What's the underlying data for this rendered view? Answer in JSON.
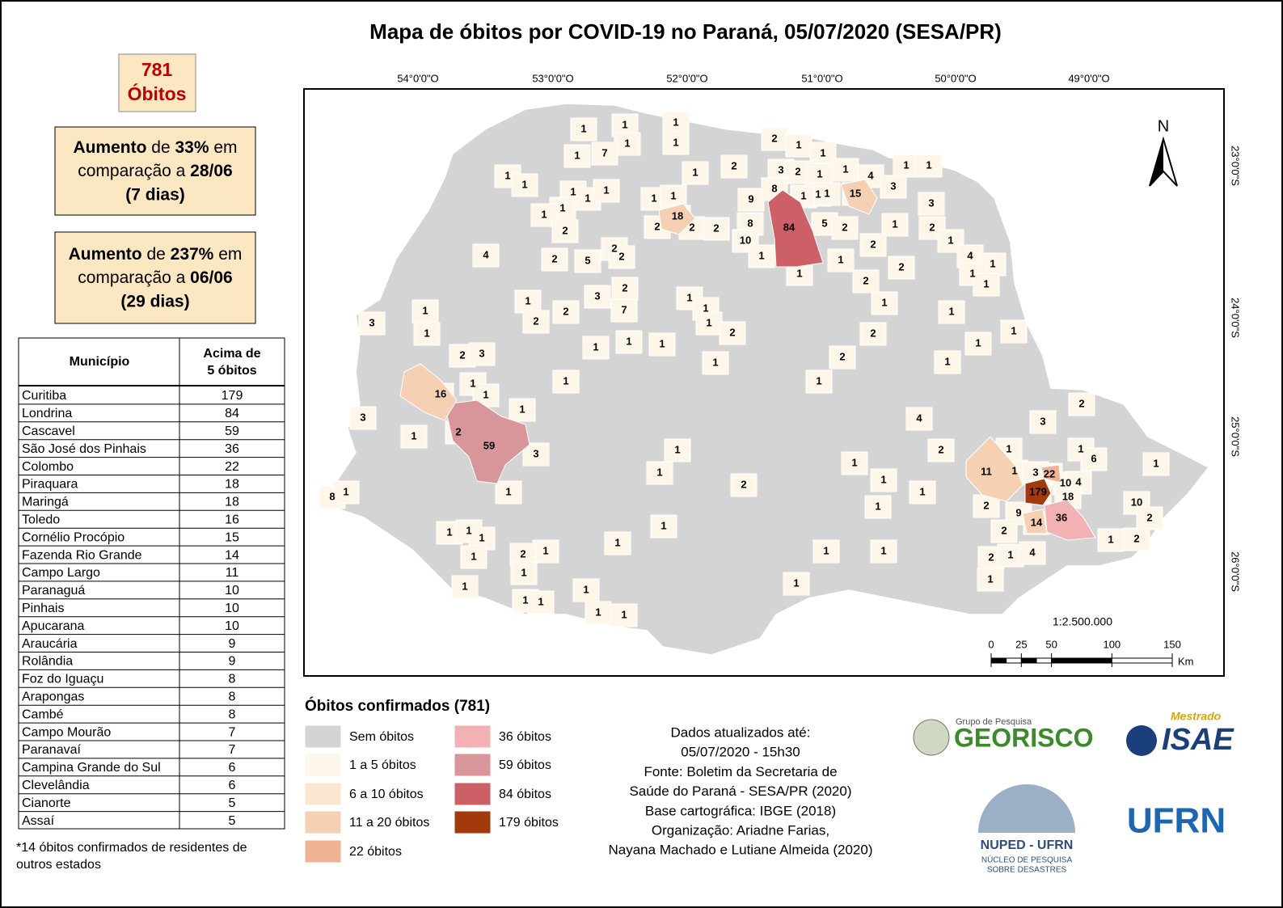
{
  "title": "Mapa de óbitos por COVID-19 no Paraná, 05/07/2020 (SESA/PR)",
  "total": {
    "value": "781",
    "label": "Óbitos"
  },
  "increase_boxes": [
    {
      "word": "Aumento",
      "de": "de",
      "percent": "33%",
      "em": "em",
      "compare": "comparação a",
      "date": "28/06",
      "days": "(7 dias)"
    },
    {
      "word": "Aumento",
      "de": "de",
      "percent": "237%",
      "em": "em",
      "compare": "comparação a",
      "date": "06/06",
      "days": "(29 dias)"
    }
  ],
  "table": {
    "header": [
      "Município",
      "Acima de",
      "5 óbitos"
    ],
    "rows": [
      [
        "Curitiba",
        179
      ],
      [
        "Londrina",
        84
      ],
      [
        "Cascavel",
        59
      ],
      [
        "São José dos Pinhais",
        36
      ],
      [
        "Colombo",
        22
      ],
      [
        "Piraquara",
        18
      ],
      [
        "Maringá",
        18
      ],
      [
        "Toledo",
        16
      ],
      [
        "Cornélio Procópio",
        15
      ],
      [
        "Fazenda Rio Grande",
        14
      ],
      [
        "Campo Largo",
        11
      ],
      [
        "Paranaguá",
        10
      ],
      [
        "Pinhais",
        10
      ],
      [
        "Apucarana",
        10
      ],
      [
        "Araucária",
        9
      ],
      [
        "Rolândia",
        9
      ],
      [
        "Foz do Iguaçu",
        8
      ],
      [
        "Arapongas",
        8
      ],
      [
        "Cambé",
        8
      ],
      [
        "Campo Mourão",
        7
      ],
      [
        "Paranavaí",
        7
      ],
      [
        "Campina Grande do Sul",
        6
      ],
      [
        "Clevelândia",
        6
      ],
      [
        "Cianorte",
        5
      ],
      [
        "Assaí",
        5
      ]
    ]
  },
  "footnote": [
    "*14 óbitos confirmados de residentes de",
    "outros estados"
  ],
  "map": {
    "longitude_labels": [
      "54°0'0\"O",
      "53°0'0\"O",
      "52°0'0\"O",
      "51°0'0\"O",
      "50°0'0\"O",
      "49°0'0\"O"
    ],
    "latitude_labels": [
      "23°0'0\"S",
      "24°0'0\"S",
      "25°0'0\"S",
      "26°0'0\"S"
    ],
    "north": "N",
    "scale_text": "1:2.500.000",
    "scale_ticks": [
      0,
      25,
      50,
      100,
      150
    ],
    "scale_unit": "Km",
    "labels": [
      1,
      1,
      1,
      1,
      1,
      1,
      7,
      2,
      1,
      1,
      2,
      3,
      2,
      1,
      1,
      4,
      1,
      1,
      1,
      1,
      1,
      3,
      1,
      1,
      1,
      1,
      1,
      1,
      1,
      9,
      8,
      1,
      1,
      1,
      15,
      3,
      18,
      84,
      8,
      5,
      2,
      2,
      2,
      2,
      2,
      10,
      1,
      2,
      1,
      4,
      2,
      5,
      2,
      2,
      2,
      1,
      4,
      1,
      1,
      2,
      1,
      1,
      2,
      1,
      3,
      2,
      7,
      1,
      2,
      2,
      1,
      1,
      1,
      2,
      1,
      1,
      1,
      3,
      1,
      2,
      1,
      1,
      1,
      1,
      1,
      1,
      2,
      2,
      3,
      1,
      1,
      1,
      1,
      16,
      1,
      1,
      3,
      2,
      4,
      3,
      1,
      2,
      59,
      3,
      1,
      2,
      1,
      1,
      6,
      1,
      1,
      11,
      1,
      3,
      22,
      1,
      1,
      10,
      4,
      8,
      1,
      1,
      2,
      1,
      179,
      18,
      1,
      2,
      9,
      36,
      10,
      14,
      2,
      1,
      1,
      1,
      1,
      2,
      1,
      2,
      1,
      1,
      2,
      1,
      1,
      1,
      2,
      1,
      4,
      1,
      1,
      1,
      1,
      1,
      1,
      1,
      1,
      1,
      6
    ]
  },
  "legend": {
    "title": "Óbitos confirmados (781)",
    "items": [
      {
        "label": "Sem óbitos",
        "color": "#d4d4d4"
      },
      {
        "label": "1 a 5 óbitos",
        "color": "#fef6e9"
      },
      {
        "label": "6 a 10 óbitos",
        "color": "#fbe7d0"
      },
      {
        "label": "11 a 20 óbitos",
        "color": "#f6d0b3"
      },
      {
        "label": "22 óbitos",
        "color": "#efb293"
      },
      {
        "label": "36 óbitos",
        "color": "#f2b2b4"
      },
      {
        "label": "59 óbitos",
        "color": "#d8969b"
      },
      {
        "label": "84 óbitos",
        "color": "#cd5f67"
      },
      {
        "label": "179 óbitos",
        "color": "#a33a0e"
      }
    ]
  },
  "info": [
    "Dados atualizados até:",
    "05/07/2020 - 15h30",
    "Fonte: Boletim da Secretaria de",
    "Saúde do Paraná - SESA/PR (2020)",
    "Base cartográfica: IBGE (2018)",
    "Organização: Ariadne Farias,",
    "Nayana Machado e Lutiane Almeida (2020)"
  ],
  "logos": {
    "georisco_top": "Grupo de Pesquisa",
    "georisco": "GEORISCO",
    "mestrado": "Mestrado",
    "isae": "ISAE",
    "nuped": "NUPED - UFRN",
    "nuped_sub1": "NÚCLEO DE PESQUISA",
    "nuped_sub2": "SOBRE DESASTRES",
    "ufrn": "UFRN"
  }
}
